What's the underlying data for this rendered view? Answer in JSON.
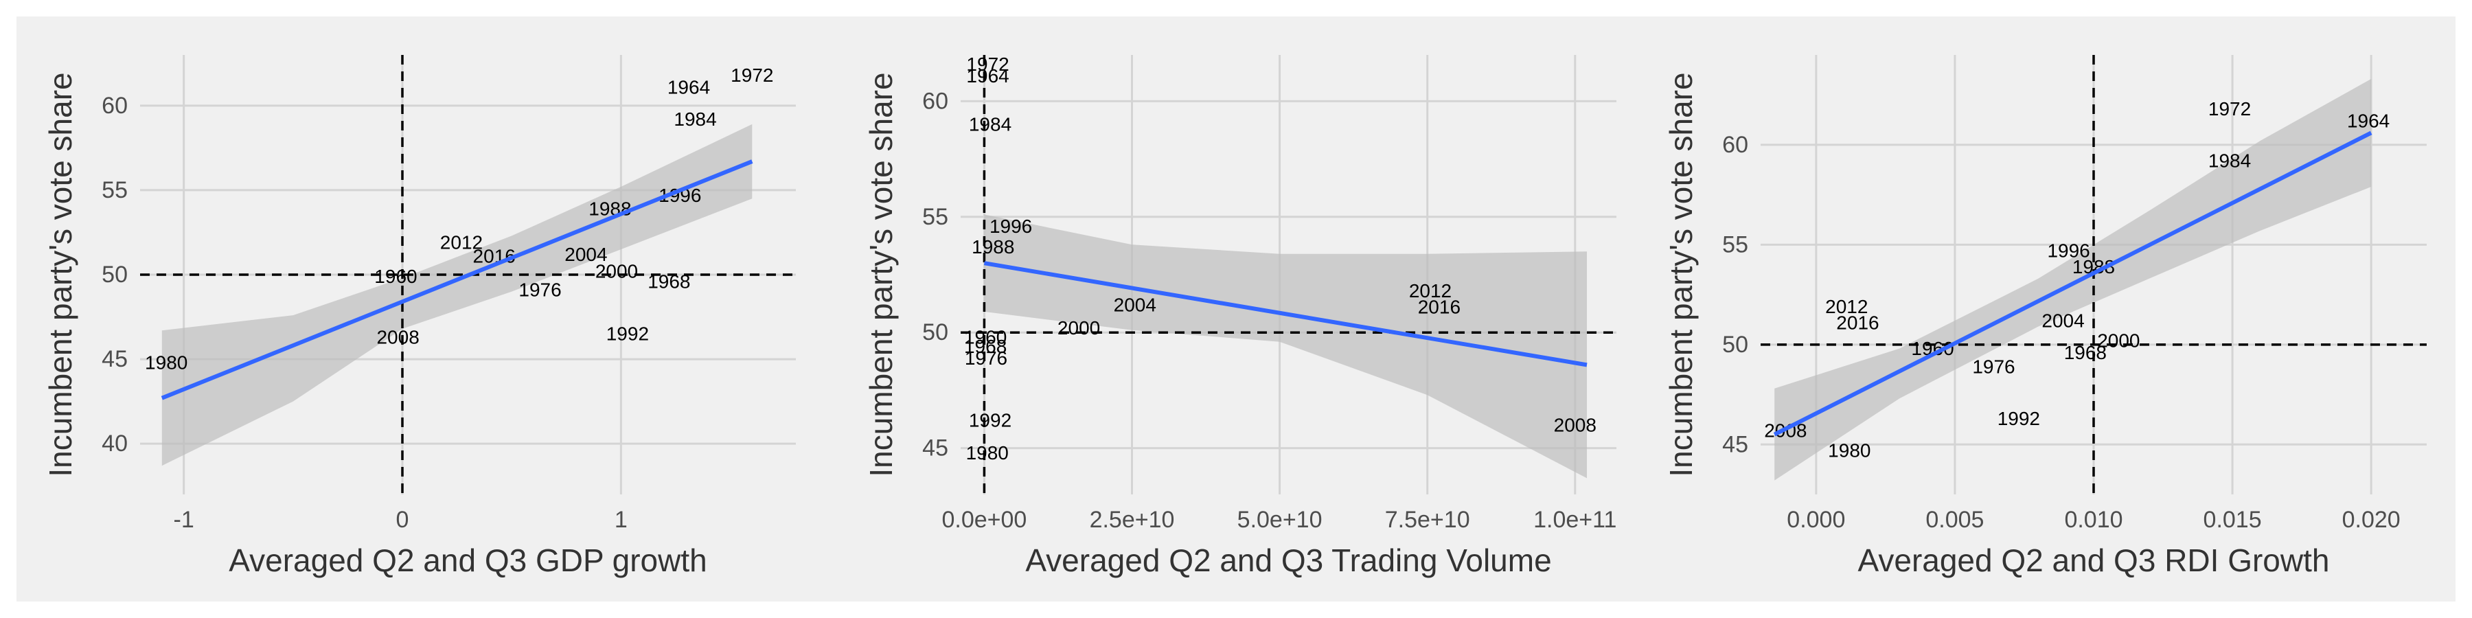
{
  "figure": {
    "background": "#f0f0f0",
    "fit_color": "#3366ff",
    "band_color": "#bdbdbd"
  },
  "chart_data": [
    {
      "type": "scatter",
      "title": "",
      "xlabel": "Averaged Q2 and Q3 GDP growth",
      "ylabel": "Incumbent party's vote share",
      "xlim": [
        -1.2,
        1.8
      ],
      "ylim": [
        37,
        63
      ],
      "xticks": [
        -1,
        0,
        1
      ],
      "xtick_labels": [
        "-1",
        "0",
        "1"
      ],
      "yticks": [
        40,
        45,
        50,
        55,
        60
      ],
      "ytick_labels": [
        "40",
        "45",
        "50",
        "55",
        "60"
      ],
      "vline": 0,
      "hline": 50,
      "grid": true,
      "points": [
        {
          "label": "1964",
          "x": 1.31,
          "y": 61.1
        },
        {
          "label": "1972",
          "x": 1.6,
          "y": 61.8
        },
        {
          "label": "1984",
          "x": 1.34,
          "y": 59.2
        },
        {
          "label": "1996",
          "x": 1.27,
          "y": 54.7
        },
        {
          "label": "1988",
          "x": 0.95,
          "y": 53.9
        },
        {
          "label": "2012",
          "x": 0.27,
          "y": 51.9
        },
        {
          "label": "2016",
          "x": 0.42,
          "y": 51.1
        },
        {
          "label": "2004",
          "x": 0.84,
          "y": 51.2
        },
        {
          "label": "2000",
          "x": 0.98,
          "y": 50.2
        },
        {
          "label": "1968",
          "x": 1.22,
          "y": 49.6
        },
        {
          "label": "1960",
          "x": -0.03,
          "y": 49.9
        },
        {
          "label": "1976",
          "x": 0.63,
          "y": 49.1
        },
        {
          "label": "2008",
          "x": -0.02,
          "y": 46.3
        },
        {
          "label": "1992",
          "x": 1.03,
          "y": 46.5
        },
        {
          "label": "1980",
          "x": -1.08,
          "y": 44.8
        }
      ],
      "fit": {
        "x": [
          -1.1,
          1.6
        ],
        "y": [
          42.7,
          56.7
        ]
      },
      "band": {
        "x": [
          -1.1,
          -0.5,
          0.0,
          0.5,
          1.0,
          1.6
        ],
        "lower": [
          38.7,
          42.5,
          46.8,
          49.0,
          51.5,
          54.5
        ],
        "upper": [
          46.7,
          47.6,
          49.8,
          52.3,
          55.2,
          58.9
        ]
      }
    },
    {
      "type": "scatter",
      "title": "",
      "xlabel": "Averaged Q2 and Q3 Trading Volume",
      "ylabel": "Incumbent party's vote share",
      "xlim": [
        -4000000000.0,
        107000000000.0
      ],
      "ylim": [
        43,
        62
      ],
      "xticks": [
        0,
        25000000000,
        50000000000,
        75000000000,
        100000000000
      ],
      "xtick_labels": [
        "0.0e+00",
        "2.5e+10",
        "5.0e+10",
        "7.5e+10",
        "1.0e+11"
      ],
      "yticks": [
        45,
        50,
        55,
        60
      ],
      "ytick_labels": [
        "45",
        "50",
        "55",
        "60"
      ],
      "vline": 0,
      "hline": 50,
      "grid": true,
      "points": [
        {
          "label": "1972",
          "x": 600000000,
          "y": 61.6
        },
        {
          "label": "1964",
          "x": 600000000,
          "y": 61.1
        },
        {
          "label": "1984",
          "x": 1000000000,
          "y": 59.0
        },
        {
          "label": "1996",
          "x": 4500000000,
          "y": 54.6
        },
        {
          "label": "1988",
          "x": 1500000000,
          "y": 53.7
        },
        {
          "label": "2004",
          "x": 25500000000,
          "y": 51.2
        },
        {
          "label": "2000",
          "x": 16000000000,
          "y": 50.2
        },
        {
          "label": "2012",
          "x": 75500000000,
          "y": 51.8
        },
        {
          "label": "2016",
          "x": 77000000000,
          "y": 51.1
        },
        {
          "label": "1960",
          "x": 200000000,
          "y": 49.8
        },
        {
          "label": "1968",
          "x": 200000000,
          "y": 49.4
        },
        {
          "label": "1976",
          "x": 300000000,
          "y": 48.9
        },
        {
          "label": "1992",
          "x": 1000000000,
          "y": 46.2
        },
        {
          "label": "1980",
          "x": 500000000,
          "y": 44.8
        },
        {
          "label": "2008",
          "x": 100000000000.0,
          "y": 46.0
        }
      ],
      "fit": {
        "x": [
          0,
          102000000000.0
        ],
        "y": [
          53.0,
          48.6
        ]
      },
      "band": {
        "x": [
          0,
          25000000000.0,
          50000000000.0,
          75000000000.0,
          102000000000.0
        ],
        "lower": [
          50.9,
          50.1,
          49.6,
          47.3,
          43.7
        ],
        "upper": [
          55.1,
          53.8,
          53.4,
          53.4,
          53.5
        ]
      }
    },
    {
      "type": "scatter",
      "title": "",
      "xlabel": "Averaged Q2 and Q3 RDI Growth",
      "ylabel": "Incumbent party's vote share",
      "xlim": [
        -0.002,
        0.022
      ],
      "ylim": [
        42.5,
        64.5
      ],
      "xticks": [
        0,
        0.005,
        0.01,
        0.015,
        0.02
      ],
      "xtick_labels": [
        "0.000",
        "0.005",
        "0.010",
        "0.015",
        "0.020"
      ],
      "yticks": [
        45,
        50,
        55,
        60
      ],
      "ytick_labels": [
        "45",
        "50",
        "55",
        "60"
      ],
      "vline": 0.01,
      "hline": 50,
      "grid": true,
      "points": [
        {
          "label": "1972",
          "x": 0.0149,
          "y": 61.8
        },
        {
          "label": "1964",
          "x": 0.0199,
          "y": 61.2
        },
        {
          "label": "1984",
          "x": 0.0149,
          "y": 59.2
        },
        {
          "label": "1996",
          "x": 0.0091,
          "y": 54.7
        },
        {
          "label": "1988",
          "x": 0.01,
          "y": 53.9
        },
        {
          "label": "2012",
          "x": 0.0011,
          "y": 51.9
        },
        {
          "label": "2016",
          "x": 0.0015,
          "y": 51.1
        },
        {
          "label": "2004",
          "x": 0.0089,
          "y": 51.2
        },
        {
          "label": "2000",
          "x": 0.0109,
          "y": 50.2
        },
        {
          "label": "1968",
          "x": 0.0097,
          "y": 49.6
        },
        {
          "label": "1960",
          "x": 0.0042,
          "y": 49.8
        },
        {
          "label": "1976",
          "x": 0.0064,
          "y": 48.9
        },
        {
          "label": "1992",
          "x": 0.0073,
          "y": 46.3
        },
        {
          "label": "2008",
          "x": -0.0011,
          "y": 45.7
        },
        {
          "label": "1980",
          "x": 0.0012,
          "y": 44.7
        }
      ],
      "fit": {
        "x": [
          -0.0015,
          0.02
        ],
        "y": [
          45.5,
          60.6
        ]
      },
      "band": {
        "x": [
          -0.0015,
          0.003,
          0.008,
          0.012,
          0.016,
          0.02
        ],
        "lower": [
          43.2,
          47.3,
          50.9,
          53.3,
          55.7,
          57.9
        ],
        "upper": [
          47.8,
          49.8,
          53.3,
          56.7,
          60.2,
          63.3
        ]
      }
    }
  ]
}
